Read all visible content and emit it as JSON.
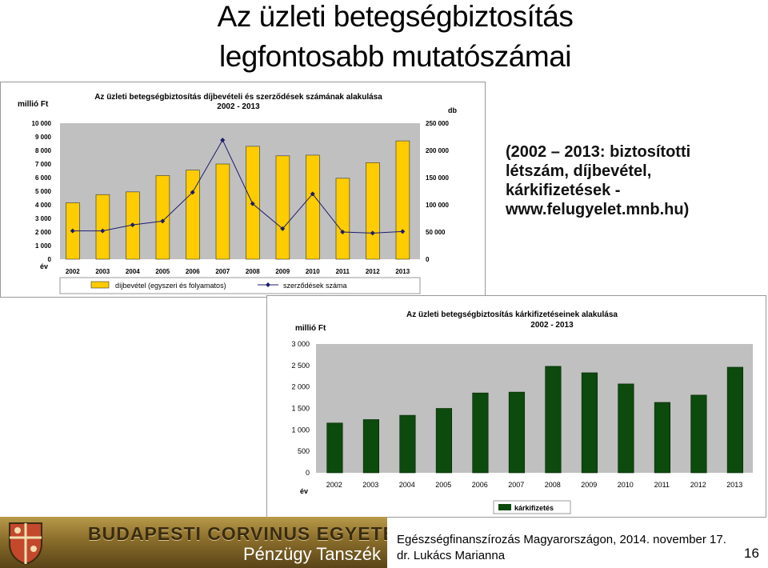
{
  "slide": {
    "title_line1": "Az üzleti betegségbiztosítás",
    "title_line2": "legfontosabb mutatószámai",
    "note_lines": [
      "(2002 – 2013: biztosítotti",
      "létszám, díjbevétel,",
      "kárkifizetések -",
      "www.felugyelet.mnb.hu)"
    ],
    "page_number": "16"
  },
  "footer": {
    "banner_text": "BUDAPESTI CORVINUS EGYETEM",
    "department": "Pénzügy Tanszék",
    "line1": "Egészségfinanszírozás Magyarországon, 2014. november 17.",
    "line2": "dr. Lukács Marianna"
  },
  "chart_data": [
    {
      "type": "bar+line",
      "title": "Az üzleti betegségbiztosítás díjbevételi és szerződések számának alakulása",
      "subtitle": "2002 - 2013",
      "ylabel_left": "millió Ft",
      "ylabel_right": "db",
      "xlabel": "év",
      "categories": [
        "2002",
        "2003",
        "2004",
        "2005",
        "2006",
        "2007",
        "2008",
        "2009",
        "2010",
        "2011",
        "2012",
        "2013"
      ],
      "ylim_left": [
        0,
        10000
      ],
      "yticks_left": [
        "0",
        "1 000",
        "2 000",
        "3 000",
        "4 000",
        "5 000",
        "6 000",
        "7 000",
        "8 000",
        "9 000",
        "10 000"
      ],
      "ylim_right": [
        0,
        250000
      ],
      "yticks_right": [
        "0",
        "50 000",
        "100 000",
        "150 000",
        "200 000",
        "250 000"
      ],
      "series": [
        {
          "name": "díjbevétel (egyszeri és folyamatos)",
          "kind": "bar",
          "axis": "left",
          "color": "#ffcc00",
          "values": [
            4150,
            4750,
            4950,
            6150,
            6550,
            7000,
            8300,
            7600,
            7650,
            5950,
            7100,
            8700
          ]
        },
        {
          "name": "szerződések száma",
          "kind": "line",
          "axis": "right",
          "color": "#1c1c6e",
          "values": [
            52000,
            52000,
            63000,
            70000,
            123000,
            219000,
            102000,
            56000,
            120000,
            50000,
            48000,
            51000
          ]
        }
      ],
      "grid": false,
      "legend": "bottom",
      "plot_bg": "#c0c0c0"
    },
    {
      "type": "bar",
      "title": "Az üzleti betegségbiztosítás kárkifizetéseinek alakulása",
      "subtitle": "2002 - 2013",
      "ylabel": "millió Ft",
      "xlabel": "év",
      "categories": [
        "2002",
        "2003",
        "2004",
        "2005",
        "2006",
        "2007",
        "2008",
        "2009",
        "2010",
        "2011",
        "2012",
        "2013"
      ],
      "ylim": [
        0,
        3000
      ],
      "yticks": [
        "0",
        "500",
        "1 000",
        "1 500",
        "2 000",
        "2 500",
        "3 000"
      ],
      "series": [
        {
          "name": "kárkifizetés",
          "color": "#0d4a0d",
          "values": [
            1160,
            1240,
            1340,
            1500,
            1860,
            1880,
            2480,
            2330,
            2070,
            1640,
            1810,
            2460
          ]
        }
      ],
      "grid": false,
      "legend": "bottom",
      "plot_bg": "#c0c0c0"
    }
  ]
}
